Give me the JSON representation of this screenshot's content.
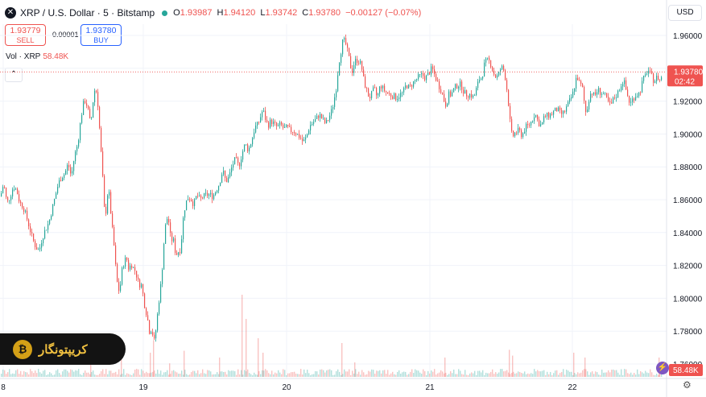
{
  "header": {
    "title": "XRP / U.S. Dollar · 5 · Bitstamp",
    "ohlc": [
      {
        "k": "O",
        "v": "1.93987"
      },
      {
        "k": "H",
        "v": "1.94120"
      },
      {
        "k": "L",
        "v": "1.93742"
      },
      {
        "k": "C",
        "v": "1.93780"
      }
    ],
    "change": "−0.00127 (−0.07%)"
  },
  "trade": {
    "sell_price": "1.93779",
    "sell_label": "SELL",
    "buy_price": "1.93780",
    "buy_label": "BUY",
    "spread": "0.00001"
  },
  "volume_label": {
    "name": "Vol · XRP",
    "value": "58.48K"
  },
  "currency": "USD",
  "watermark": "کریپتونگار",
  "colors": {
    "up": "#26a69a",
    "down": "#ef5350",
    "grid": "#f0f3fa",
    "axis_text": "#131722",
    "price_tag": "#ef5350",
    "volume_tag": "#ef5350"
  },
  "chart_data": {
    "type": "candlestick",
    "x_ticks": [
      "8",
      "19",
      "20",
      "21",
      "22"
    ],
    "y_ticks": [
      "1.96000",
      "1.94000",
      "1.92000",
      "1.90000",
      "1.88000",
      "1.86000",
      "1.84000",
      "1.82000",
      "1.80000",
      "1.78000",
      "1.76000"
    ],
    "ylim": [
      1.7552,
      1.9708
    ],
    "last_price": "1.93780",
    "last_price_value": 1.9378,
    "countdown": "02:42",
    "volume_last": "58.48K",
    "price_path": [
      [
        0,
        1.862
      ],
      [
        4,
        1.87
      ],
      [
        8,
        1.858
      ],
      [
        12,
        1.862
      ],
      [
        16,
        1.868
      ],
      [
        20,
        1.866
      ],
      [
        24,
        1.858
      ],
      [
        28,
        1.856
      ],
      [
        32,
        1.85
      ],
      [
        36,
        1.843
      ],
      [
        40,
        1.836
      ],
      [
        44,
        1.831
      ],
      [
        48,
        1.829
      ],
      [
        52,
        1.837
      ],
      [
        56,
        1.842
      ],
      [
        60,
        1.846
      ],
      [
        64,
        1.854
      ],
      [
        68,
        1.862
      ],
      [
        72,
        1.87
      ],
      [
        76,
        1.874
      ],
      [
        80,
        1.876
      ],
      [
        84,
        1.882
      ],
      [
        88,
        1.874
      ],
      [
        92,
        1.887
      ],
      [
        96,
        1.894
      ],
      [
        100,
        1.91
      ],
      [
        104,
        1.921
      ],
      [
        108,
        1.917
      ],
      [
        112,
        1.905
      ],
      [
        116,
        1.925
      ],
      [
        118,
        1.928
      ],
      [
        120,
        1.924
      ],
      [
        122,
        1.912
      ],
      [
        124,
        1.895
      ],
      [
        126,
        1.882
      ],
      [
        128,
        1.864
      ],
      [
        130,
        1.845
      ],
      [
        132,
        1.861
      ],
      [
        134,
        1.866
      ],
      [
        136,
        1.86
      ],
      [
        138,
        1.845
      ],
      [
        140,
        1.838
      ],
      [
        142,
        1.826
      ],
      [
        144,
        1.813
      ],
      [
        146,
        1.806
      ],
      [
        148,
        1.804
      ],
      [
        150,
        1.813
      ],
      [
        152,
        1.821
      ],
      [
        154,
        1.821
      ],
      [
        156,
        1.826
      ],
      [
        158,
        1.821
      ],
      [
        160,
        1.816
      ],
      [
        162,
        1.823
      ],
      [
        164,
        1.818
      ],
      [
        166,
        1.819
      ],
      [
        168,
        1.815
      ],
      [
        170,
        1.813
      ],
      [
        172,
        1.807
      ],
      [
        174,
        1.81
      ],
      [
        176,
        1.806
      ],
      [
        178,
        1.799
      ],
      [
        180,
        1.793
      ],
      [
        182,
        1.79
      ],
      [
        184,
        1.783
      ],
      [
        186,
        1.777
      ],
      [
        188,
        1.785
      ],
      [
        190,
        1.772
      ],
      [
        192,
        1.776
      ],
      [
        194,
        1.785
      ],
      [
        196,
        1.795
      ],
      [
        198,
        1.803
      ],
      [
        200,
        1.812
      ],
      [
        202,
        1.826
      ],
      [
        204,
        1.841
      ],
      [
        206,
        1.847
      ],
      [
        208,
        1.85
      ],
      [
        210,
        1.843
      ],
      [
        212,
        1.833
      ],
      [
        214,
        1.838
      ],
      [
        216,
        1.832
      ],
      [
        218,
        1.826
      ],
      [
        220,
        1.828
      ],
      [
        224,
        1.83
      ],
      [
        226,
        1.844
      ],
      [
        228,
        1.853
      ],
      [
        232,
        1.861
      ],
      [
        236,
        1.861
      ],
      [
        240,
        1.857
      ],
      [
        244,
        1.863
      ],
      [
        248,
        1.86
      ],
      [
        252,
        1.862
      ],
      [
        256,
        1.863
      ],
      [
        260,
        1.863
      ],
      [
        264,
        1.862
      ],
      [
        268,
        1.866
      ],
      [
        272,
        1.87
      ],
      [
        276,
        1.878
      ],
      [
        280,
        1.871
      ],
      [
        284,
        1.874
      ],
      [
        288,
        1.881
      ],
      [
        292,
        1.885
      ],
      [
        296,
        1.88
      ],
      [
        300,
        1.888
      ],
      [
        304,
        1.894
      ],
      [
        308,
        1.89
      ],
      [
        312,
        1.896
      ],
      [
        316,
        1.904
      ],
      [
        320,
        1.906
      ],
      [
        324,
        1.912
      ],
      [
        326,
        1.915
      ],
      [
        328,
        1.911
      ],
      [
        332,
        1.905
      ],
      [
        336,
        1.908
      ],
      [
        340,
        1.906
      ],
      [
        344,
        1.904
      ],
      [
        348,
        1.906
      ],
      [
        352,
        1.903
      ],
      [
        356,
        1.904
      ],
      [
        360,
        1.902
      ],
      [
        364,
        1.902
      ],
      [
        368,
        1.9
      ],
      [
        372,
        1.898
      ],
      [
        376,
        1.895
      ],
      [
        380,
        1.898
      ],
      [
        384,
        1.905
      ],
      [
        388,
        1.907
      ],
      [
        392,
        1.909
      ],
      [
        396,
        1.912
      ],
      [
        400,
        1.909
      ],
      [
        404,
        1.906
      ],
      [
        408,
        1.91
      ],
      [
        412,
        1.915
      ],
      [
        416,
        1.925
      ],
      [
        418,
        1.931
      ],
      [
        420,
        1.943
      ],
      [
        422,
        1.947
      ],
      [
        424,
        1.954
      ],
      [
        426,
        1.958
      ],
      [
        428,
        1.955
      ],
      [
        430,
        1.954
      ],
      [
        432,
        1.947
      ],
      [
        434,
        1.945
      ],
      [
        436,
        1.937
      ],
      [
        438,
        1.94
      ],
      [
        440,
        1.945
      ],
      [
        442,
        1.944
      ],
      [
        444,
        1.946
      ],
      [
        446,
        1.943
      ],
      [
        448,
        1.943
      ],
      [
        450,
        1.936
      ],
      [
        452,
        1.931
      ],
      [
        454,
        1.928
      ],
      [
        456,
        1.925
      ],
      [
        458,
        1.922
      ],
      [
        462,
        1.925
      ],
      [
        464,
        1.928
      ],
      [
        468,
        1.922
      ],
      [
        472,
        1.93
      ],
      [
        476,
        1.927
      ],
      [
        480,
        1.925
      ],
      [
        484,
        1.924
      ],
      [
        488,
        1.923
      ],
      [
        492,
        1.922
      ],
      [
        496,
        1.924
      ],
      [
        500,
        1.925
      ],
      [
        504,
        1.93
      ],
      [
        508,
        1.928
      ],
      [
        512,
        1.931
      ],
      [
        516,
        1.933
      ],
      [
        520,
        1.935
      ],
      [
        524,
        1.936
      ],
      [
        528,
        1.934
      ],
      [
        532,
        1.937
      ],
      [
        536,
        1.94
      ],
      [
        540,
        1.935
      ],
      [
        544,
        1.93
      ],
      [
        548,
        1.926
      ],
      [
        550,
        1.922
      ],
      [
        552,
        1.919
      ],
      [
        554,
        1.917
      ],
      [
        556,
        1.924
      ],
      [
        560,
        1.924
      ],
      [
        564,
        1.928
      ],
      [
        568,
        1.93
      ],
      [
        572,
        1.93
      ],
      [
        576,
        1.925
      ],
      [
        580,
        1.924
      ],
      [
        584,
        1.924
      ],
      [
        588,
        1.922
      ],
      [
        592,
        1.929
      ],
      [
        596,
        1.935
      ],
      [
        598,
        1.933
      ],
      [
        600,
        1.941
      ],
      [
        604,
        1.945
      ],
      [
        608,
        1.944
      ],
      [
        610,
        1.941
      ],
      [
        612,
        1.938
      ],
      [
        614,
        1.935
      ],
      [
        618,
        1.935
      ],
      [
        622,
        1.941
      ],
      [
        626,
        1.938
      ],
      [
        628,
        1.931
      ],
      [
        630,
        1.924
      ],
      [
        632,
        1.913
      ],
      [
        634,
        1.902
      ],
      [
        636,
        1.898
      ],
      [
        638,
        1.9
      ],
      [
        640,
        1.901
      ],
      [
        644,
        1.902
      ],
      [
        648,
        1.899
      ],
      [
        652,
        1.904
      ],
      [
        656,
        1.905
      ],
      [
        660,
        1.908
      ],
      [
        664,
        1.913
      ],
      [
        668,
        1.907
      ],
      [
        672,
        1.905
      ],
      [
        676,
        1.911
      ],
      [
        680,
        1.911
      ],
      [
        684,
        1.912
      ],
      [
        688,
        1.914
      ],
      [
        692,
        1.915
      ],
      [
        696,
        1.912
      ],
      [
        700,
        1.913
      ],
      [
        704,
        1.917
      ],
      [
        708,
        1.921
      ],
      [
        712,
        1.926
      ],
      [
        714,
        1.932
      ],
      [
        716,
        1.935
      ],
      [
        718,
        1.933
      ],
      [
        720,
        1.929
      ],
      [
        722,
        1.93
      ],
      [
        724,
        1.925
      ],
      [
        726,
        1.915
      ],
      [
        728,
        1.912
      ],
      [
        730,
        1.92
      ],
      [
        734,
        1.926
      ],
      [
        738,
        1.923
      ],
      [
        742,
        1.927
      ],
      [
        746,
        1.925
      ],
      [
        750,
        1.924
      ],
      [
        754,
        1.92
      ],
      [
        758,
        1.917
      ],
      [
        762,
        1.922
      ],
      [
        766,
        1.924
      ],
      [
        770,
        1.929
      ],
      [
        774,
        1.933
      ],
      [
        778,
        1.925
      ],
      [
        782,
        1.918
      ],
      [
        786,
        1.922
      ],
      [
        790,
        1.924
      ],
      [
        794,
        1.925
      ],
      [
        798,
        1.933
      ],
      [
        802,
        1.936
      ],
      [
        804,
        1.94
      ],
      [
        806,
        1.937
      ],
      [
        808,
        1.936
      ],
      [
        812,
        1.932
      ],
      [
        816,
        1.935
      ],
      [
        820,
        1.932
      ],
      [
        822,
        1.938
      ]
    ],
    "volume_spikes": [
      [
        112,
        0.15
      ],
      [
        150,
        0.22
      ],
      [
        186,
        0.25
      ],
      [
        190,
        0.38
      ],
      [
        210,
        0.14
      ],
      [
        228,
        0.27
      ],
      [
        272,
        0.2
      ],
      [
        300,
        0.85
      ],
      [
        305,
        0.6
      ],
      [
        320,
        0.4
      ],
      [
        326,
        0.25
      ],
      [
        424,
        0.35
      ],
      [
        440,
        0.15
      ],
      [
        552,
        0.2
      ],
      [
        632,
        0.28
      ],
      [
        636,
        0.22
      ],
      [
        712,
        0.25
      ],
      [
        726,
        0.2
      ],
      [
        818,
        0.2
      ]
    ]
  }
}
